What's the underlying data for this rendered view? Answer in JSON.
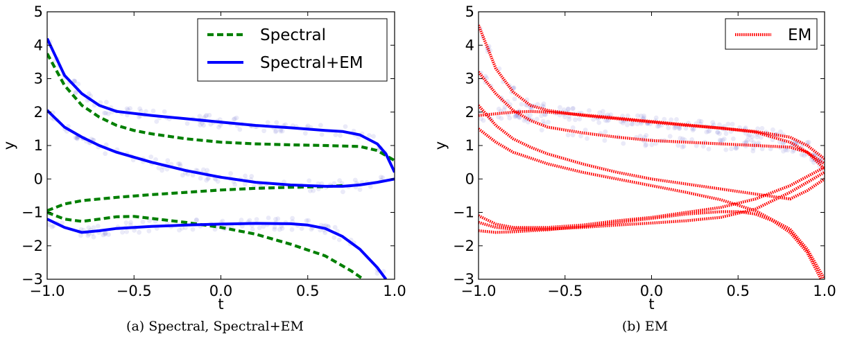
{
  "chart_data": [
    {
      "id": "a",
      "type": "line",
      "caption": "(a) Spectral, Spectral+EM",
      "xlabel": "t",
      "ylabel": "y",
      "xlim": [
        -1.0,
        1.0
      ],
      "ylim": [
        -3,
        5
      ],
      "xticks": [
        "−1.0",
        "−0.5",
        "0.0",
        "0.5",
        "1.0"
      ],
      "xtick_values": [
        -1.0,
        -0.5,
        0.0,
        0.5,
        1.0
      ],
      "yticks": [
        "−3",
        "−2",
        "−1",
        "0",
        "1",
        "2",
        "3",
        "4",
        "5"
      ],
      "ytick_values": [
        -3,
        -2,
        -1,
        0,
        1,
        2,
        3,
        4,
        5
      ],
      "legend_position": "top-right",
      "grid": false,
      "series": [
        {
          "name": "Spectral",
          "color": "#007f00",
          "style": "dashed",
          "curves": [
            [
              [
                -1.0,
                3.75
              ],
              [
                -0.9,
                2.8
              ],
              [
                -0.8,
                2.2
              ],
              [
                -0.7,
                1.85
              ],
              [
                -0.6,
                1.6
              ],
              [
                -0.5,
                1.45
              ],
              [
                -0.4,
                1.35
              ],
              [
                -0.2,
                1.2
              ],
              [
                0.0,
                1.1
              ],
              [
                0.2,
                1.05
              ],
              [
                0.4,
                1.02
              ],
              [
                0.6,
                1.0
              ],
              [
                0.8,
                0.97
              ],
              [
                0.9,
                0.85
              ],
              [
                1.0,
                0.55
              ]
            ],
            [
              [
                -1.0,
                -0.95
              ],
              [
                -0.9,
                -0.75
              ],
              [
                -0.8,
                -0.65
              ],
              [
                -0.6,
                -0.55
              ],
              [
                -0.4,
                -0.47
              ],
              [
                -0.2,
                -0.4
              ],
              [
                0.0,
                -0.33
              ],
              [
                0.2,
                -0.28
              ],
              [
                0.4,
                -0.25
              ],
              [
                0.6,
                -0.23
              ],
              [
                0.7,
                -0.2
              ]
            ],
            [
              [
                -1.0,
                -1.0
              ],
              [
                -0.9,
                -1.2
              ],
              [
                -0.8,
                -1.27
              ],
              [
                -0.7,
                -1.2
              ],
              [
                -0.6,
                -1.13
              ],
              [
                -0.5,
                -1.12
              ],
              [
                -0.4,
                -1.18
              ],
              [
                -0.2,
                -1.3
              ],
              [
                0.0,
                -1.45
              ],
              [
                0.2,
                -1.65
              ],
              [
                0.4,
                -1.95
              ],
              [
                0.6,
                -2.3
              ],
              [
                0.75,
                -2.75
              ],
              [
                0.82,
                -3.0
              ]
            ]
          ]
        },
        {
          "name": "Spectral+EM",
          "color": "#0000ff",
          "style": "solid",
          "curves": [
            [
              [
                -1.0,
                4.2
              ],
              [
                -0.9,
                3.1
              ],
              [
                -0.8,
                2.55
              ],
              [
                -0.7,
                2.2
              ],
              [
                -0.6,
                2.02
              ],
              [
                -0.4,
                1.9
              ],
              [
                -0.2,
                1.8
              ],
              [
                0.0,
                1.7
              ],
              [
                0.2,
                1.6
              ],
              [
                0.4,
                1.53
              ],
              [
                0.6,
                1.45
              ],
              [
                0.7,
                1.42
              ],
              [
                0.8,
                1.32
              ],
              [
                0.9,
                1.05
              ],
              [
                0.95,
                0.75
              ],
              [
                1.0,
                0.2
              ]
            ],
            [
              [
                -1.0,
                2.05
              ],
              [
                -0.9,
                1.55
              ],
              [
                -0.8,
                1.25
              ],
              [
                -0.7,
                1.0
              ],
              [
                -0.6,
                0.8
              ],
              [
                -0.4,
                0.5
              ],
              [
                -0.2,
                0.25
              ],
              [
                0.0,
                0.05
              ],
              [
                0.2,
                -0.1
              ],
              [
                0.4,
                -0.18
              ],
              [
                0.6,
                -0.22
              ],
              [
                0.7,
                -0.22
              ],
              [
                0.8,
                -0.18
              ],
              [
                0.9,
                -0.1
              ],
              [
                1.0,
                0.0
              ]
            ],
            [
              [
                -1.0,
                -1.2
              ],
              [
                -0.9,
                -1.45
              ],
              [
                -0.8,
                -1.6
              ],
              [
                -0.7,
                -1.55
              ],
              [
                -0.6,
                -1.48
              ],
              [
                -0.4,
                -1.42
              ],
              [
                -0.2,
                -1.38
              ],
              [
                0.0,
                -1.35
              ],
              [
                0.2,
                -1.33
              ],
              [
                0.4,
                -1.34
              ],
              [
                0.5,
                -1.38
              ],
              [
                0.6,
                -1.48
              ],
              [
                0.7,
                -1.72
              ],
              [
                0.8,
                -2.1
              ],
              [
                0.9,
                -2.65
              ],
              [
                0.95,
                -3.0
              ]
            ]
          ]
        }
      ]
    },
    {
      "id": "b",
      "type": "line",
      "caption": "(b) EM",
      "xlabel": "t",
      "ylabel": "y",
      "xlim": [
        -1.0,
        1.0
      ],
      "ylim": [
        -3,
        5
      ],
      "xticks": [
        "−1.0",
        "−0.5",
        "0.0",
        "0.5",
        "1.0"
      ],
      "xtick_values": [
        -1.0,
        -0.5,
        0.0,
        0.5,
        1.0
      ],
      "yticks": [
        "−3",
        "−2",
        "−1",
        "0",
        "1",
        "2",
        "3",
        "4",
        "5"
      ],
      "ytick_values": [
        -3,
        -2,
        -1,
        0,
        1,
        2,
        3,
        4,
        5
      ],
      "legend_position": "top-right",
      "grid": false,
      "series": [
        {
          "name": "EM",
          "color": "#ff0000",
          "style": "dotted",
          "curves": [
            [
              [
                -1.0,
                4.6
              ],
              [
                -0.9,
                3.3
              ],
              [
                -0.8,
                2.6
              ],
              [
                -0.7,
                2.2
              ],
              [
                -0.6,
                2.05
              ],
              [
                -0.4,
                1.9
              ],
              [
                -0.2,
                1.8
              ],
              [
                0.0,
                1.7
              ],
              [
                0.2,
                1.6
              ],
              [
                0.4,
                1.52
              ],
              [
                0.6,
                1.42
              ],
              [
                0.8,
                1.25
              ],
              [
                0.9,
                1.0
              ],
              [
                1.0,
                0.6
              ]
            ],
            [
              [
                -1.0,
                3.2
              ],
              [
                -0.9,
                2.55
              ],
              [
                -0.8,
                2.05
              ],
              [
                -0.7,
                1.75
              ],
              [
                -0.6,
                1.55
              ],
              [
                -0.4,
                1.38
              ],
              [
                -0.2,
                1.25
              ],
              [
                0.0,
                1.15
              ],
              [
                0.2,
                1.1
              ],
              [
                0.4,
                1.05
              ],
              [
                0.6,
                1.0
              ],
              [
                0.8,
                0.95
              ],
              [
                0.9,
                0.8
              ],
              [
                1.0,
                0.45
              ]
            ],
            [
              [
                -1.0,
                1.9
              ],
              [
                -0.9,
                1.95
              ],
              [
                -0.8,
                2.0
              ],
              [
                -0.7,
                2.02
              ],
              [
                -0.6,
                2.0
              ],
              [
                -0.4,
                1.92
              ],
              [
                -0.2,
                1.82
              ],
              [
                0.0,
                1.72
              ],
              [
                0.2,
                1.62
              ],
              [
                0.4,
                1.52
              ],
              [
                0.6,
                1.4
              ],
              [
                0.8,
                1.1
              ],
              [
                0.9,
                0.8
              ],
              [
                1.0,
                0.3
              ]
            ],
            [
              [
                -1.0,
                2.2
              ],
              [
                -0.9,
                1.6
              ],
              [
                -0.8,
                1.2
              ],
              [
                -0.7,
                0.95
              ],
              [
                -0.6,
                0.75
              ],
              [
                -0.4,
                0.45
              ],
              [
                -0.2,
                0.2
              ],
              [
                0.0,
                0.0
              ],
              [
                0.2,
                -0.15
              ],
              [
                0.4,
                -0.3
              ],
              [
                0.6,
                -0.45
              ],
              [
                0.8,
                -0.6
              ],
              [
                0.9,
                -0.35
              ],
              [
                1.0,
                0.0
              ]
            ],
            [
              [
                -1.0,
                1.5
              ],
              [
                -0.9,
                1.1
              ],
              [
                -0.8,
                0.8
              ],
              [
                -0.6,
                0.45
              ],
              [
                -0.4,
                0.2
              ],
              [
                -0.2,
                0.0
              ],
              [
                0.0,
                -0.2
              ],
              [
                0.2,
                -0.4
              ],
              [
                0.4,
                -0.62
              ],
              [
                0.6,
                -0.95
              ],
              [
                0.8,
                -1.5
              ],
              [
                0.9,
                -2.1
              ],
              [
                1.0,
                -3.0
              ]
            ],
            [
              [
                -1.0,
                -1.3
              ],
              [
                -0.9,
                -1.45
              ],
              [
                -0.8,
                -1.5
              ],
              [
                -0.6,
                -1.5
              ],
              [
                -0.4,
                -1.45
              ],
              [
                -0.2,
                -1.38
              ],
              [
                0.0,
                -1.32
              ],
              [
                0.2,
                -1.25
              ],
              [
                0.4,
                -1.15
              ],
              [
                0.6,
                -0.9
              ],
              [
                0.8,
                -0.4
              ],
              [
                0.9,
                -0.1
              ],
              [
                1.0,
                0.2
              ]
            ],
            [
              [
                -1.0,
                -1.1
              ],
              [
                -0.9,
                -1.35
              ],
              [
                -0.8,
                -1.45
              ],
              [
                -0.6,
                -1.45
              ],
              [
                -0.4,
                -1.38
              ],
              [
                -0.2,
                -1.25
              ],
              [
                0.0,
                -1.15
              ],
              [
                0.2,
                -1.0
              ],
              [
                0.4,
                -0.85
              ],
              [
                0.6,
                -0.6
              ],
              [
                0.8,
                -0.2
              ],
              [
                1.0,
                0.35
              ]
            ],
            [
              [
                -1.0,
                -1.55
              ],
              [
                -0.9,
                -1.6
              ],
              [
                -0.8,
                -1.58
              ],
              [
                -0.6,
                -1.52
              ],
              [
                -0.4,
                -1.42
              ],
              [
                -0.2,
                -1.3
              ],
              [
                0.0,
                -1.18
              ],
              [
                0.2,
                -1.05
              ],
              [
                0.4,
                -0.98
              ],
              [
                0.5,
                -0.98
              ],
              [
                0.6,
                -1.05
              ],
              [
                0.7,
                -1.25
              ],
              [
                0.8,
                -1.6
              ],
              [
                0.9,
                -2.2
              ],
              [
                0.98,
                -3.0
              ]
            ]
          ]
        }
      ]
    }
  ]
}
